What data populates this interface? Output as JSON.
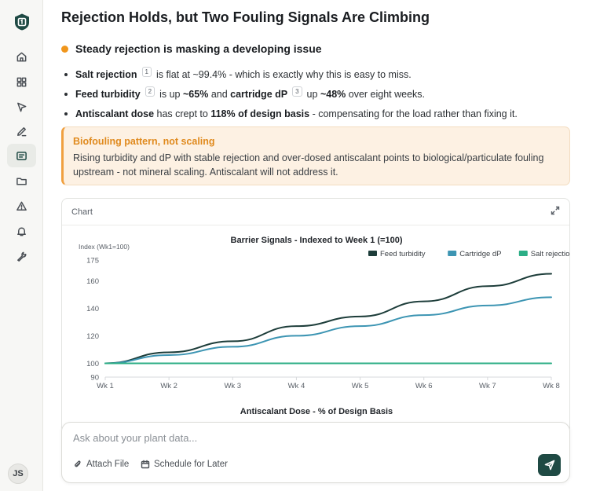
{
  "user": {
    "initials": "JS"
  },
  "sidebar": {
    "items": [
      {
        "icon": "home-icon"
      },
      {
        "icon": "grid-icon"
      },
      {
        "icon": "cursor-icon"
      },
      {
        "icon": "pencil-icon"
      },
      {
        "icon": "report-icon",
        "active": true
      },
      {
        "icon": "folder-icon"
      },
      {
        "icon": "alert-icon"
      },
      {
        "icon": "bell-icon"
      },
      {
        "icon": "wrench-icon"
      }
    ]
  },
  "page": {
    "title": "Rejection Holds, but Two Fouling Signals Are Climbing"
  },
  "section": {
    "title": "Steady rejection is masking a developing issue",
    "bullets": [
      {
        "b1": "Salt rejection",
        "fn1": "1",
        "t1": "is flat at ~99.4% - which is exactly why this is easy to miss."
      },
      {
        "b1": "Feed turbidity",
        "fn1": "2",
        "t1": "is up",
        "b2": "~65%",
        "t2": "and",
        "b3": "cartridge dP",
        "fn2": "3",
        "t3": "up",
        "b4": "~48%",
        "t4": "over eight weeks."
      },
      {
        "b1": "Antiscalant dose",
        "t1": "has crept to",
        "b2": "118% of design basis",
        "t2": "- compensating for the load rather than fixing it."
      }
    ]
  },
  "callout": {
    "title": "Biofouling pattern, not scaling",
    "body": "Rising turbidity and dP with stable rejection and over-dosed antiscalant points to biological/particulate fouling upstream - not mineral scaling. Antiscalant will not address it."
  },
  "chart_card": {
    "label": "Chart",
    "next_title": "Antiscalant Dose - % of Design Basis"
  },
  "chart_data": {
    "type": "line",
    "title": "Barrier Signals - Indexed to Week 1 (=100)",
    "ylabel": "Index (Wk1=100)",
    "xlabel": "",
    "categories": [
      "Wk 1",
      "Wk 2",
      "Wk 3",
      "Wk 4",
      "Wk 5",
      "Wk 6",
      "Wk 7",
      "Wk 8"
    ],
    "ylim": [
      90,
      175
    ],
    "yticks": [
      90,
      100,
      120,
      140,
      160,
      175
    ],
    "legend_position": "top-right",
    "series": [
      {
        "name": "Feed turbidity",
        "color": "#1d3d3a",
        "values": [
          100,
          108,
          116,
          127,
          134,
          145,
          156,
          165
        ]
      },
      {
        "name": "Cartridge dP",
        "color": "#3d95b3",
        "values": [
          100,
          106,
          112,
          120,
          127,
          135,
          142,
          148
        ]
      },
      {
        "name": "Salt rejection",
        "color": "#2cae86",
        "values": [
          100,
          100,
          100,
          100,
          100,
          100,
          100,
          100
        ]
      }
    ]
  },
  "composer": {
    "placeholder": "Ask about your plant data...",
    "attach_label": "Attach File",
    "schedule_label": "Schedule for Later"
  }
}
